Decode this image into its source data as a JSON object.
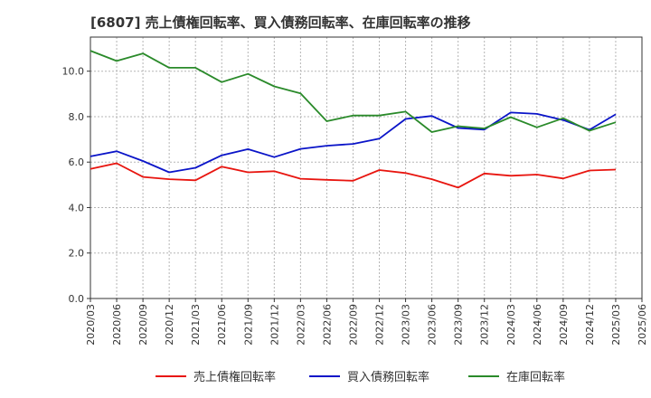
{
  "chart_data": {
    "type": "line",
    "title": "[6807]  売上債権回転率、買入債務回転率、在庫回転率の推移",
    "xlabel": "",
    "ylabel": "",
    "ylim": [
      0,
      11.5
    ],
    "y_ticks": [
      "0.0",
      "2.0",
      "4.0",
      "6.0",
      "8.0",
      "10.0"
    ],
    "y_tick_values": [
      0,
      2,
      4,
      6,
      8,
      10
    ],
    "grid": true,
    "legend_position": "bottom",
    "categories": [
      "2020/03",
      "2020/06",
      "2020/09",
      "2020/12",
      "2021/03",
      "2021/06",
      "2021/09",
      "2021/12",
      "2022/03",
      "2022/06",
      "2022/09",
      "2022/12",
      "2023/03",
      "2023/06",
      "2023/09",
      "2023/12",
      "2024/03",
      "2024/06",
      "2024/09",
      "2024/12",
      "2025/03",
      "2025/06"
    ],
    "series": [
      {
        "name": "売上債権回転率",
        "color": "#e8150f",
        "values": [
          5.7,
          5.95,
          5.35,
          5.25,
          5.2,
          5.8,
          5.55,
          5.6,
          5.27,
          5.22,
          5.18,
          5.65,
          5.52,
          5.25,
          4.88,
          5.5,
          5.4,
          5.45,
          5.28,
          5.63,
          5.67,
          null
        ]
      },
      {
        "name": "買入債務回転率",
        "color": "#0a14c8",
        "values": [
          6.25,
          6.48,
          6.05,
          5.55,
          5.75,
          6.3,
          6.57,
          6.22,
          6.58,
          6.72,
          6.8,
          7.03,
          7.9,
          8.03,
          7.5,
          7.43,
          8.18,
          8.12,
          7.85,
          7.42,
          8.1,
          null
        ]
      },
      {
        "name": "在庫回転率",
        "color": "#2a8a2a",
        "values": [
          10.9,
          10.45,
          10.78,
          10.15,
          10.15,
          9.52,
          9.88,
          9.33,
          9.02,
          7.8,
          8.05,
          8.05,
          8.22,
          7.32,
          7.58,
          7.48,
          7.98,
          7.53,
          7.93,
          7.38,
          7.75,
          null
        ]
      }
    ]
  }
}
